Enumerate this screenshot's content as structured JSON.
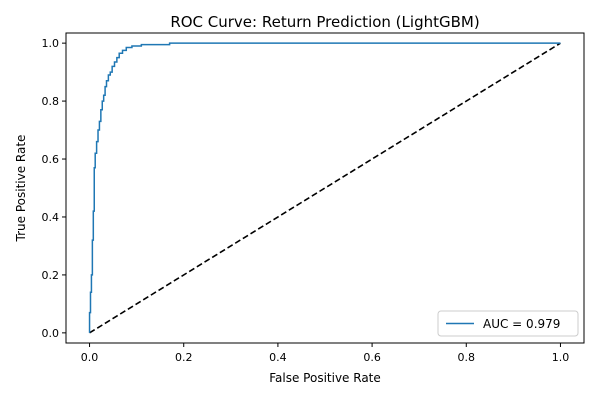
{
  "chart_data": {
    "type": "line",
    "title": "ROC Curve: Return Prediction (LightGBM)",
    "xlabel": "False Positive Rate",
    "ylabel": "True Positive Rate",
    "xlim": [
      -0.05,
      1.05
    ],
    "ylim": [
      -0.035,
      1.035
    ],
    "xticks": [
      "0.0",
      "0.2",
      "0.4",
      "0.6",
      "0.8",
      "1.0"
    ],
    "yticks": [
      "0.0",
      "0.2",
      "0.4",
      "0.6",
      "0.8",
      "1.0"
    ],
    "grid": false,
    "legend_position": "lower-right",
    "series": [
      {
        "name": "AUC = 0.979",
        "color": "#1f77b4",
        "style": "solid",
        "x": [
          0.0,
          0.0,
          0.002,
          0.002,
          0.004,
          0.004,
          0.006,
          0.006,
          0.008,
          0.008,
          0.01,
          0.01,
          0.012,
          0.012,
          0.015,
          0.015,
          0.018,
          0.018,
          0.021,
          0.021,
          0.024,
          0.024,
          0.027,
          0.027,
          0.03,
          0.03,
          0.033,
          0.033,
          0.036,
          0.036,
          0.04,
          0.04,
          0.044,
          0.044,
          0.048,
          0.048,
          0.053,
          0.053,
          0.058,
          0.058,
          0.063,
          0.063,
          0.07,
          0.07,
          0.078,
          0.078,
          0.09,
          0.09,
          0.11,
          0.11,
          0.17,
          0.17,
          1.0
        ],
        "y": [
          0.0,
          0.07,
          0.07,
          0.14,
          0.14,
          0.2,
          0.2,
          0.32,
          0.32,
          0.42,
          0.42,
          0.57,
          0.57,
          0.62,
          0.62,
          0.66,
          0.66,
          0.7,
          0.7,
          0.73,
          0.73,
          0.77,
          0.77,
          0.8,
          0.8,
          0.82,
          0.82,
          0.85,
          0.85,
          0.87,
          0.87,
          0.89,
          0.89,
          0.9,
          0.9,
          0.92,
          0.92,
          0.935,
          0.935,
          0.95,
          0.95,
          0.965,
          0.965,
          0.975,
          0.975,
          0.985,
          0.985,
          0.99,
          0.99,
          0.995,
          0.995,
          1.0,
          1.0
        ]
      },
      {
        "name": "",
        "color": "#000000",
        "style": "dashed",
        "x": [
          0.0,
          1.0
        ],
        "y": [
          0.0,
          1.0
        ]
      }
    ]
  }
}
